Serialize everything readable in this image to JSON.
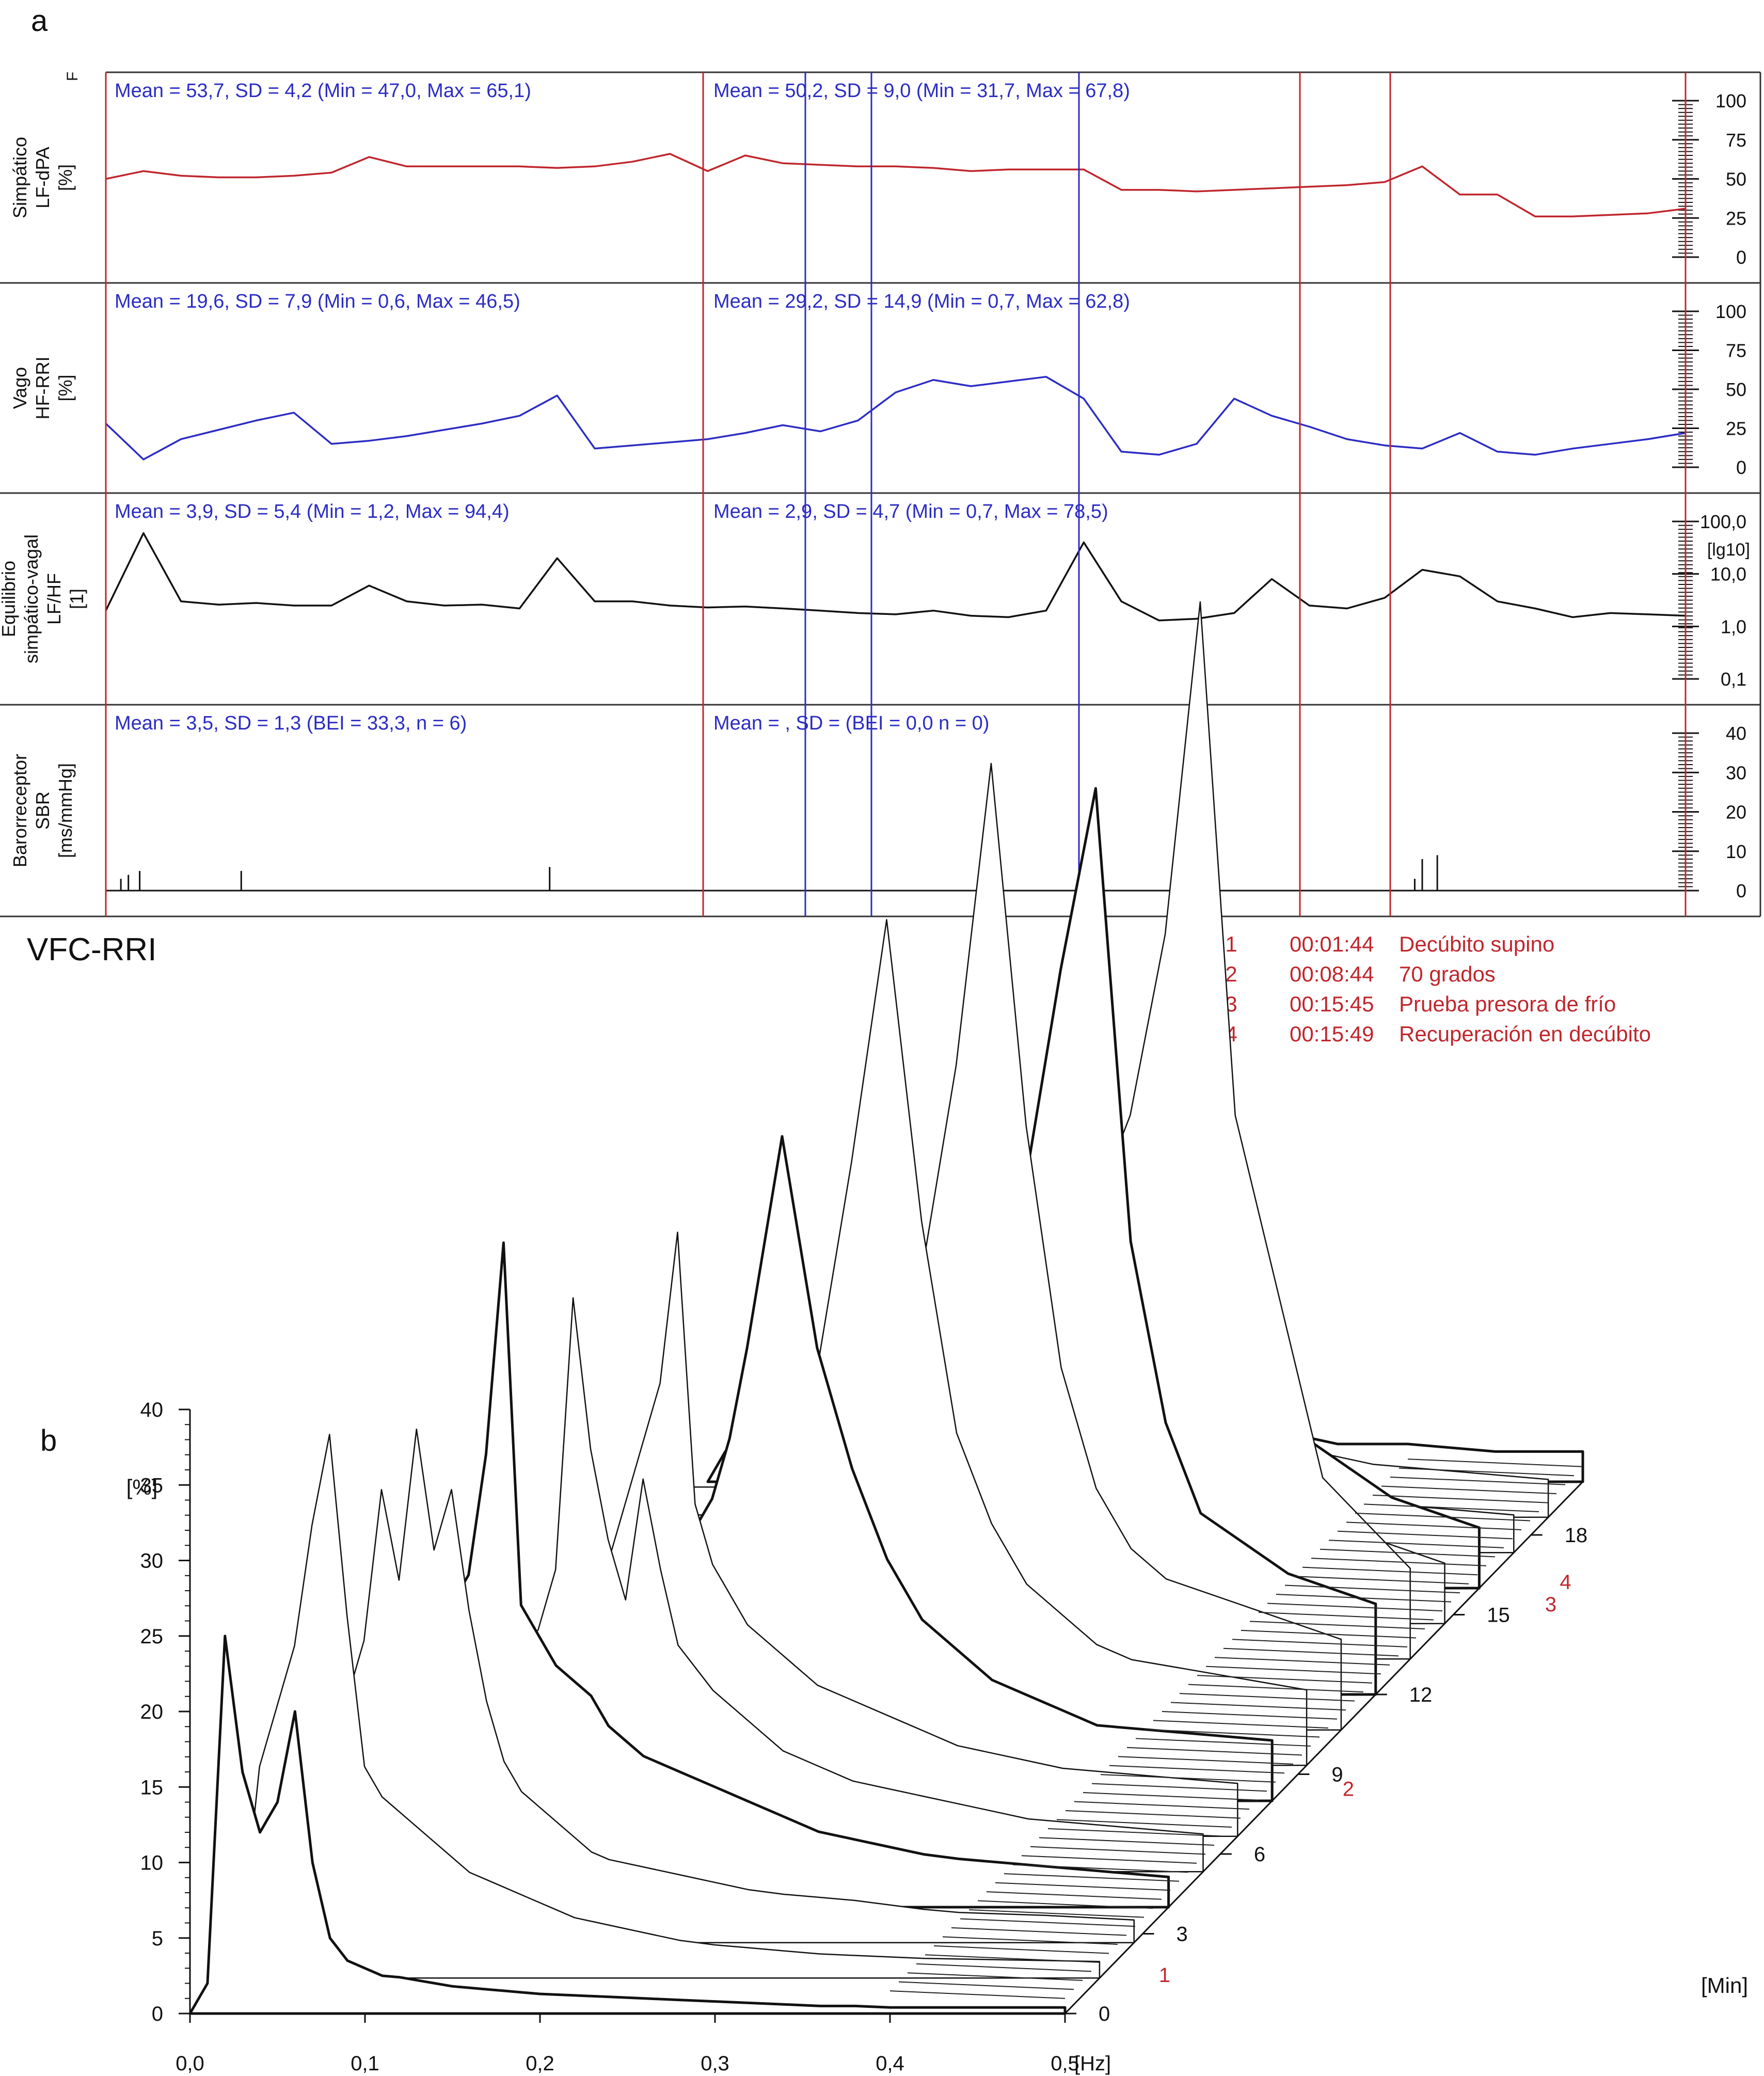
{
  "panel_a_label": "a",
  "panel_b_label": "b",
  "chart_data": [
    {
      "type": "line",
      "panel": "a",
      "ylabel_lines": [
        "Simpático",
        "LF-dPA",
        "[%]"
      ],
      "corner_label": "F",
      "ylim": [
        0,
        100
      ],
      "ticks": [
        "100",
        "75",
        "50",
        "25",
        "0"
      ],
      "tick_values": [
        100,
        75,
        50,
        25,
        0
      ],
      "stats_left": "Mean = 53,7, SD = 4,2 (Min = 47,0, Max = 65,1)",
      "stats_right": "Mean = 50,2, SD = 9,0 (Min = 31,7, Max = 67,8)",
      "x_min": [
        0,
        0.5,
        1,
        1.5,
        2,
        2.5,
        3,
        3.5,
        4,
        4.5,
        5,
        5.5,
        6,
        6.5,
        7,
        7.5,
        8,
        8.5,
        9,
        9.5,
        10,
        10.5,
        11,
        11.5,
        12,
        12.5,
        13,
        13.5,
        14,
        14.5,
        15,
        15.5,
        16,
        16.5,
        17,
        17.5,
        18,
        18.5,
        19,
        19.5,
        20,
        20.5,
        21
      ],
      "values": [
        50,
        55,
        52,
        51,
        51,
        52,
        54,
        64,
        58,
        58,
        58,
        58,
        57,
        58,
        61,
        66,
        55,
        65,
        60,
        59,
        58,
        58,
        57,
        55,
        56,
        56,
        56,
        43,
        43,
        42,
        43,
        44,
        45,
        46,
        48,
        58,
        40,
        40,
        26,
        26,
        27,
        28,
        31
      ],
      "color": "#c0262d"
    },
    {
      "type": "line",
      "panel": "a",
      "ylabel_lines": [
        "Vago",
        "HF-RRI",
        "[%]"
      ],
      "ylim": [
        0,
        100
      ],
      "ticks": [
        "100",
        "75",
        "50",
        "25",
        "0"
      ],
      "tick_values": [
        100,
        75,
        50,
        25,
        0
      ],
      "stats_left": "Mean = 19,6, SD = 7,9 (Min = 0,6, Max = 46,5)",
      "stats_right": "Mean = 29,2, SD = 14,9 (Min = 0,7, Max = 62,8)",
      "x_min": [
        0,
        0.5,
        1,
        1.5,
        2,
        2.5,
        3,
        3.5,
        4,
        4.5,
        5,
        5.5,
        6,
        6.5,
        7,
        7.5,
        8,
        8.5,
        9,
        9.5,
        10,
        10.5,
        11,
        11.5,
        12,
        12.5,
        13,
        13.5,
        14,
        14.5,
        15,
        15.5,
        16,
        16.5,
        17,
        17.5,
        18,
        18.5,
        19,
        19.5,
        20,
        20.5,
        21
      ],
      "values": [
        28,
        5,
        18,
        24,
        30,
        35,
        15,
        17,
        20,
        24,
        28,
        33,
        46,
        12,
        14,
        16,
        18,
        22,
        27,
        23,
        30,
        48,
        56,
        52,
        55,
        58,
        44,
        10,
        8,
        15,
        44,
        33,
        26,
        18,
        14,
        12,
        22,
        10,
        8,
        12,
        15,
        18,
        22
      ],
      "color": "#2c2cc4"
    },
    {
      "type": "line",
      "panel": "a",
      "ylabel_lines": [
        "Equilibrio",
        "simpático-vagal",
        "LF/HF",
        "[1]"
      ],
      "yscale": "log",
      "ylim": [
        0.1,
        100
      ],
      "ticks": [
        "100,0",
        "10,0",
        "1,0",
        "0,1"
      ],
      "tick_values": [
        100,
        10,
        1,
        0.1
      ],
      "unit_label": "[lg10]",
      "stats_left": "Mean = 3,9, SD = 5,4 (Min = 1,2, Max = 94,4)",
      "stats_right": "Mean = 2,9, SD = 4,7 (Min = 0,7, Max = 78,5)",
      "x_min": [
        0,
        0.5,
        1,
        1.5,
        2,
        2.5,
        3,
        3.5,
        4,
        4.5,
        5,
        5.5,
        6,
        6.5,
        7,
        7.5,
        8,
        8.5,
        9,
        9.5,
        10,
        10.5,
        11,
        11.5,
        12,
        12.5,
        13,
        13.5,
        14,
        14.5,
        15,
        15.5,
        16,
        16.5,
        17,
        17.5,
        18,
        18.5,
        19,
        19.5,
        20,
        20.5,
        21
      ],
      "values": [
        2,
        60,
        3,
        2.6,
        2.8,
        2.5,
        2.5,
        6,
        3,
        2.5,
        2.6,
        2.2,
        20,
        3,
        3,
        2.5,
        2.3,
        2.4,
        2.2,
        2.0,
        1.8,
        1.7,
        2.0,
        1.6,
        1.5,
        2.0,
        40,
        3,
        1.3,
        1.4,
        1.8,
        8,
        2.5,
        2.2,
        3.5,
        12,
        9,
        3,
        2.2,
        1.5,
        1.8,
        1.7,
        1.6
      ],
      "color": "#111111"
    },
    {
      "type": "bar",
      "panel": "a",
      "ylabel_lines": [
        "Barorreceptor",
        "SBR",
        "[ms/mmHg]"
      ],
      "ylim": [
        0,
        40
      ],
      "ticks": [
        "40",
        "30",
        "20",
        "10",
        "0"
      ],
      "tick_values": [
        40,
        30,
        20,
        10,
        0
      ],
      "stats_left": "Mean = 3,5, SD = 1,3 (BEI = 33,3, n = 6)",
      "stats_right": "Mean = , SD = (BEI = 0,0 n = 0)",
      "x_min": [
        0.2,
        0.3,
        0.45,
        1.8,
        5.9,
        17.4,
        17.5,
        17.7
      ],
      "values": [
        3,
        4,
        5,
        5,
        6,
        3,
        8,
        9
      ],
      "color": "#111111"
    },
    {
      "type": "area",
      "panel": "b",
      "title": "VFC-RRI",
      "ylabel": "[%]",
      "ylim": [
        0,
        40
      ],
      "yticks": [
        "40",
        "35",
        "30",
        "25",
        "20",
        "15",
        "10",
        "5",
        "0"
      ],
      "ytick_values": [
        40,
        35,
        30,
        25,
        20,
        15,
        10,
        5,
        0
      ],
      "xticks": [
        "0,0",
        "0,1",
        "0,2",
        "0,3",
        "0,4",
        "0,5"
      ],
      "xtick_values": [
        0,
        0.1,
        0.2,
        0.3,
        0.4,
        0.5
      ],
      "xunit": "[Hz]",
      "zlabel": "[Min]",
      "zticks": [
        "0",
        "3",
        "6",
        "9",
        "12",
        "15",
        "18"
      ],
      "ztick_values": [
        0,
        3,
        6,
        9,
        12,
        15,
        18
      ],
      "freq_hz": [
        0.01,
        0.02,
        0.03,
        0.04,
        0.05,
        0.06,
        0.07,
        0.08,
        0.09,
        0.1,
        0.11,
        0.12,
        0.13,
        0.14,
        0.15,
        0.16,
        0.17,
        0.18,
        0.19,
        0.2,
        0.22,
        0.24,
        0.26,
        0.28,
        0.3,
        0.32,
        0.34,
        0.36,
        0.38,
        0.4,
        0.45,
        0.5
      ],
      "series": [
        {
          "values": [
            2,
            25,
            16,
            12,
            14,
            20,
            10,
            5,
            3.5,
            3,
            2.5,
            2.4,
            2.2,
            2,
            1.8,
            1.7,
            1.6,
            1.5,
            1.4,
            1.3,
            1.2,
            1.1,
            1,
            0.9,
            0.8,
            0.7,
            0.6,
            0.5,
            0.5,
            0.4,
            0.4,
            0.4
          ]
        },
        {
          "values": [
            3,
            14,
            18,
            22,
            30,
            36,
            24,
            14,
            12,
            11,
            10,
            9,
            8,
            7,
            6.5,
            6,
            5.5,
            5,
            4.5,
            4,
            3.5,
            3,
            2.5,
            2.2,
            2,
            1.8,
            1.6,
            1.5,
            1.4,
            1.3,
            1.2,
            1.1
          ]
        },
        {
          "values": [
            4,
            8,
            10,
            12,
            16,
            20,
            30,
            24,
            34,
            26,
            30,
            22,
            16,
            12,
            10,
            9,
            8,
            7,
            6,
            5.5,
            5,
            4.5,
            4,
            3.5,
            3.2,
            3,
            2.8,
            2.5,
            2.2,
            2,
            1.8,
            1.5
          ]
        },
        {
          "values": [
            5,
            6,
            8,
            10,
            12,
            14,
            16,
            18,
            20,
            22,
            30,
            44,
            20,
            18,
            16,
            15,
            14,
            12,
            11,
            10,
            9,
            8,
            7,
            6,
            5,
            4.5,
            4,
            3.5,
            3.2,
            3,
            2.5,
            2
          ]
        },
        {
          "values": [
            5,
            6,
            7,
            8,
            9,
            10,
            11,
            12,
            13,
            14,
            15,
            16,
            20,
            38,
            28,
            22,
            18,
            26,
            20,
            15,
            12,
            10,
            8,
            7,
            6,
            5.5,
            5,
            4.5,
            4,
            3.5,
            3,
            2.5
          ]
        },
        {
          "values": [
            5,
            5,
            5,
            6,
            6,
            7,
            8,
            9,
            10,
            11,
            12,
            14,
            16,
            18,
            22,
            26,
            30,
            40,
            22,
            18,
            14,
            12,
            10,
            9,
            8,
            7,
            6,
            5.5,
            5,
            4.5,
            4,
            3.5
          ]
        },
        {
          "values": [
            5,
            5,
            5,
            5,
            6,
            6,
            7,
            8,
            9,
            10,
            11,
            12,
            13,
            14,
            15,
            16,
            18,
            20,
            24,
            30,
            44,
            30,
            22,
            16,
            12,
            10,
            8,
            7,
            6,
            5,
            4.5,
            4
          ]
        },
        {
          "values": [
            5,
            5,
            5,
            5,
            5,
            5,
            6,
            6,
            7,
            8,
            9,
            10,
            11,
            12,
            13,
            14,
            15,
            16,
            18,
            20,
            26,
            40,
            56,
            36,
            22,
            16,
            12,
            10,
            8,
            7,
            6,
            5
          ]
        },
        {
          "values": [
            4,
            4,
            4,
            4,
            5,
            5,
            5,
            6,
            6,
            7,
            8,
            9,
            10,
            11,
            12,
            13,
            14,
            15,
            16,
            18,
            20,
            24,
            30,
            44,
            64,
            40,
            24,
            16,
            12,
            10,
            8,
            6
          ]
        },
        {
          "values": [
            4,
            4,
            4,
            4,
            4,
            5,
            5,
            5,
            6,
            6,
            7,
            8,
            9,
            10,
            11,
            12,
            13,
            14,
            15,
            16,
            18,
            20,
            24,
            28,
            34,
            48,
            60,
            30,
            18,
            12,
            8,
            6
          ]
        },
        {
          "values": [
            3,
            3,
            3,
            3,
            4,
            4,
            4,
            5,
            5,
            6,
            6,
            7,
            8,
            9,
            10,
            11,
            12,
            13,
            14,
            15,
            16,
            18,
            20,
            22,
            26,
            30,
            36,
            48,
            70,
            36,
            12,
            6
          ]
        },
        {
          "values": [
            3,
            3,
            3,
            3,
            3,
            3,
            4,
            4,
            4,
            5,
            5,
            6,
            6,
            7,
            8,
            9,
            10,
            11,
            12,
            13,
            14,
            15,
            16,
            18,
            20,
            22,
            24,
            26,
            30,
            12,
            6,
            4
          ]
        },
        {
          "values": [
            3,
            3,
            3,
            3,
            3,
            3,
            3,
            3,
            4,
            4,
            4,
            5,
            5,
            5,
            6,
            6,
            7,
            7,
            8,
            8,
            9,
            10,
            11,
            12,
            13,
            14,
            15,
            16,
            14,
            10,
            6,
            4
          ]
        },
        {
          "values": [
            2.5,
            2.5,
            2.5,
            2.5,
            2.5,
            3,
            3,
            3,
            3,
            3,
            3.5,
            3.5,
            4,
            4,
            4,
            4.5,
            4.5,
            5,
            5,
            5.5,
            6,
            8,
            12,
            10,
            8,
            6,
            5,
            4.5,
            4,
            3.5,
            3,
            2.5
          ]
        },
        {
          "values": [
            2,
            2,
            2,
            2,
            2,
            2,
            2.5,
            2.5,
            2.5,
            2.5,
            3,
            3,
            3,
            3,
            3,
            3.5,
            3.5,
            3.5,
            4,
            4,
            4.5,
            5,
            5.5,
            6,
            6.5,
            6,
            5,
            4.5,
            4,
            3.5,
            3,
            2.5
          ]
        },
        {
          "values": [
            2,
            2,
            2,
            2,
            2,
            2,
            2,
            2,
            2,
            2,
            2.5,
            2.5,
            2.5,
            2.5,
            2.5,
            3,
            3,
            3,
            3,
            3,
            3,
            3,
            3,
            3,
            3,
            3,
            3,
            2.5,
            2.5,
            2.5,
            2,
            2
          ]
        }
      ]
    }
  ],
  "events": [
    {
      "num": "1",
      "time": "00:01:44",
      "label": "Decúbito supino",
      "min": 1.73
    },
    {
      "num": "2",
      "time": "00:08:44",
      "label": "70 grados",
      "min": 8.73
    },
    {
      "num": "3",
      "time": "00:15:45",
      "label": "Prueba presora de frío",
      "min": 15.75
    },
    {
      "num": "4",
      "time": "00:15:49",
      "label": "Recuperación en decúbito",
      "min": 15.82
    }
  ],
  "colors": {
    "red": "#c0262d",
    "blue": "#2c2cc4",
    "black": "#111111",
    "grid": "#999999"
  }
}
